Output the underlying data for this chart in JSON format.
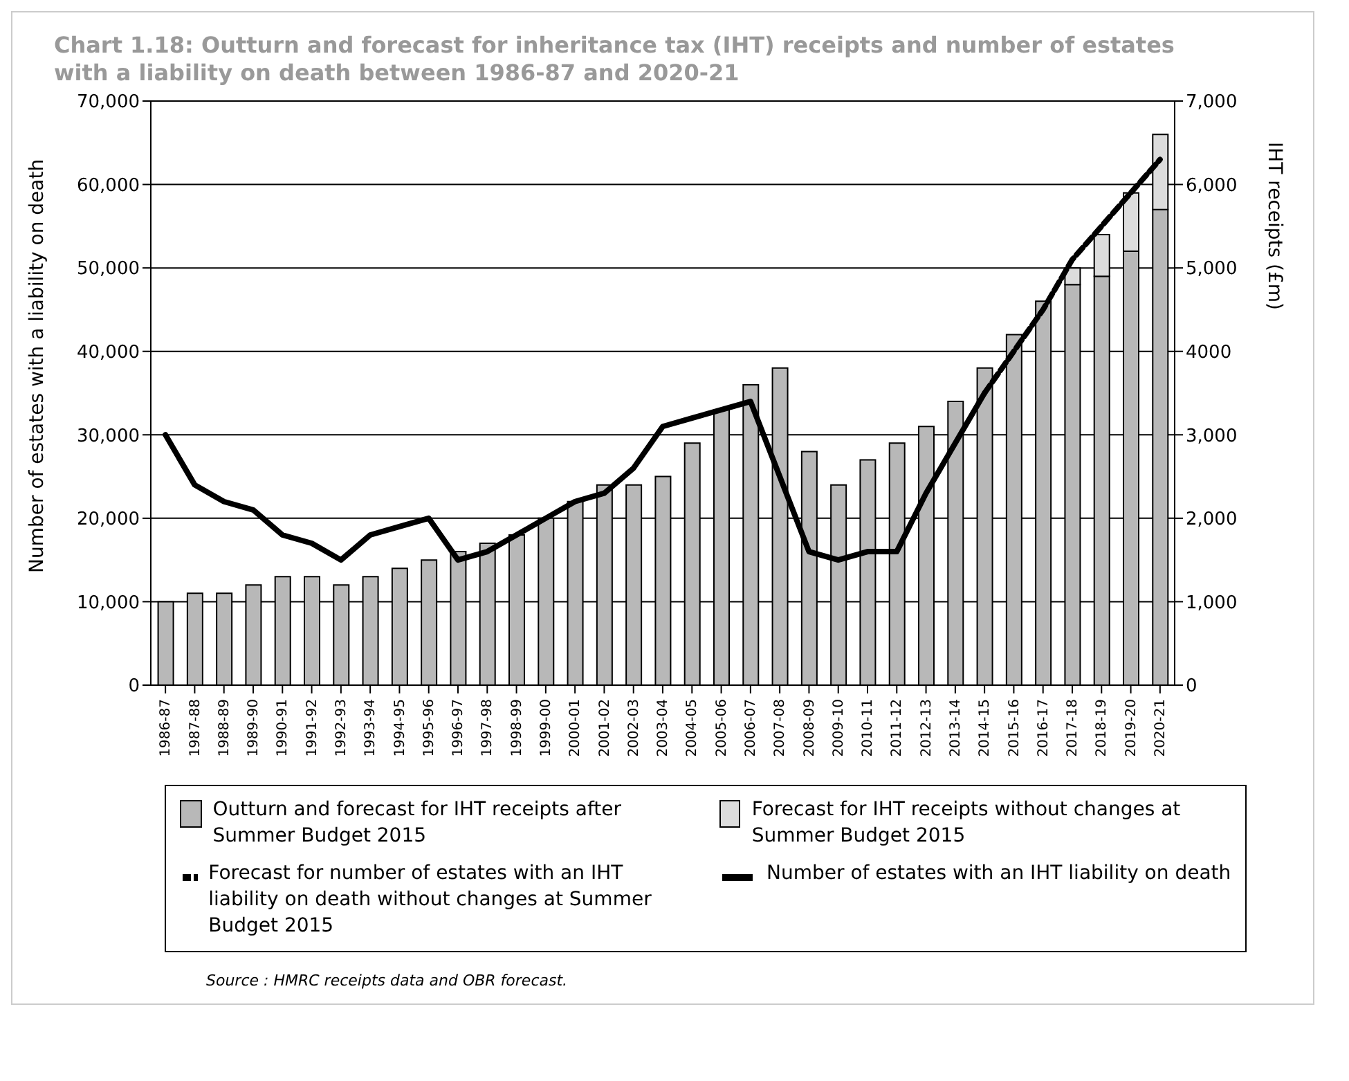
{
  "chart_data": {
    "type": "bar",
    "title": "Chart 1.18: Outturn and forecast for inheritance tax (IHT) receipts and number of estates with a liability on death between 1986-87 and 2020-21",
    "categories": [
      "1986-87",
      "1987-88",
      "1988-89",
      "1989-90",
      "1990-91",
      "1991-92",
      "1992-93",
      "1993-94",
      "1994-95",
      "1995-96",
      "1996-97",
      "1997-98",
      "1998-99",
      "1999-00",
      "2000-01",
      "2001-02",
      "2002-03",
      "2003-04",
      "2004-05",
      "2005-06",
      "2006-07",
      "2007-08",
      "2008-09",
      "2009-10",
      "2010-11",
      "2011-12",
      "2012-13",
      "2013-14",
      "2014-15",
      "2015-16",
      "2016-17",
      "2017-18",
      "2018-19",
      "2019-20",
      "2020-21"
    ],
    "series": [
      {
        "name": "Outturn and forecast for IHT receipts after Summer Budget 2015",
        "axis": "y2",
        "color": "#b8b8b8",
        "values": [
          1000,
          1100,
          1100,
          1200,
          1300,
          1300,
          1200,
          1300,
          1400,
          1500,
          1600,
          1700,
          1800,
          2000,
          2200,
          2400,
          2400,
          2500,
          2900,
          3300,
          3600,
          3800,
          2800,
          2400,
          2700,
          2900,
          3100,
          3400,
          3800,
          4200,
          4600,
          4800,
          4900,
          5200,
          5700
        ]
      },
      {
        "name": "Forecast for IHT receipts without changes at Summer Budget 2015",
        "axis": "y2",
        "color": "#dcdcdc",
        "values": [
          null,
          null,
          null,
          null,
          null,
          null,
          null,
          null,
          null,
          null,
          null,
          null,
          null,
          null,
          null,
          null,
          null,
          null,
          null,
          null,
          null,
          null,
          null,
          null,
          null,
          null,
          null,
          null,
          null,
          null,
          null,
          200,
          500,
          700,
          900
        ]
      },
      {
        "name": "Forecast for number of estates with an IHT liability on death without changes at Summer Budget 2015",
        "type": "line",
        "color": "#000000",
        "line_style": "dashed",
        "values": [
          null,
          null,
          null,
          null,
          null,
          null,
          null,
          null,
          null,
          null,
          null,
          null,
          null,
          null,
          null,
          null,
          null,
          null,
          null,
          null,
          null,
          null,
          null,
          null,
          null,
          null,
          null,
          null,
          35000,
          40000,
          45000,
          51000,
          55000,
          59000,
          63000
        ]
      },
      {
        "name": "Number of estates with an IHT liability on death",
        "type": "line",
        "color": "#000000",
        "line_style": "solid",
        "values": [
          30000,
          24000,
          22000,
          21000,
          18000,
          17000,
          15000,
          18000,
          19000,
          20000,
          15000,
          16000,
          18000,
          20000,
          22000,
          23000,
          26000,
          31000,
          32000,
          33000,
          34000,
          25000,
          16000,
          15000,
          16000,
          16000,
          23000,
          29000,
          35000,
          null,
          null,
          null,
          null,
          null,
          null
        ]
      }
    ],
    "stacked": true,
    "ylabel": "Number of estates with a liability on death",
    "y2label": "IHT receipts (£m)",
    "ylim": [
      0,
      70000
    ],
    "yticks": [
      0,
      {
        "value": 10000,
        "label": "10,000"
      },
      {
        "value": 20000,
        "label": "20,000"
      },
      {
        "value": 30000,
        "label": "30,000"
      },
      {
        "value": 40000,
        "label": "40,000"
      },
      {
        "value": 50000,
        "label": "50,000"
      },
      {
        "value": 60000,
        "label": "60,000"
      },
      {
        "value": 70000,
        "label": "70,000"
      }
    ],
    "y2lim": [
      0,
      7000
    ],
    "y2ticks": [
      0,
      {
        "value": 1000,
        "label": "1,000"
      },
      {
        "value": 2000,
        "label": "2,000"
      },
      {
        "value": 3000,
        "label": "3,000"
      },
      4000,
      {
        "value": 5000,
        "label": "5,000"
      },
      {
        "value": 6000,
        "label": "6,000"
      },
      {
        "value": 7000,
        "label": "7,000"
      }
    ],
    "grid": "y",
    "legend": "bottom",
    "marker": "none",
    "annotations": [
      "Source : HMRC receipts data and OBR forecast."
    ]
  }
}
